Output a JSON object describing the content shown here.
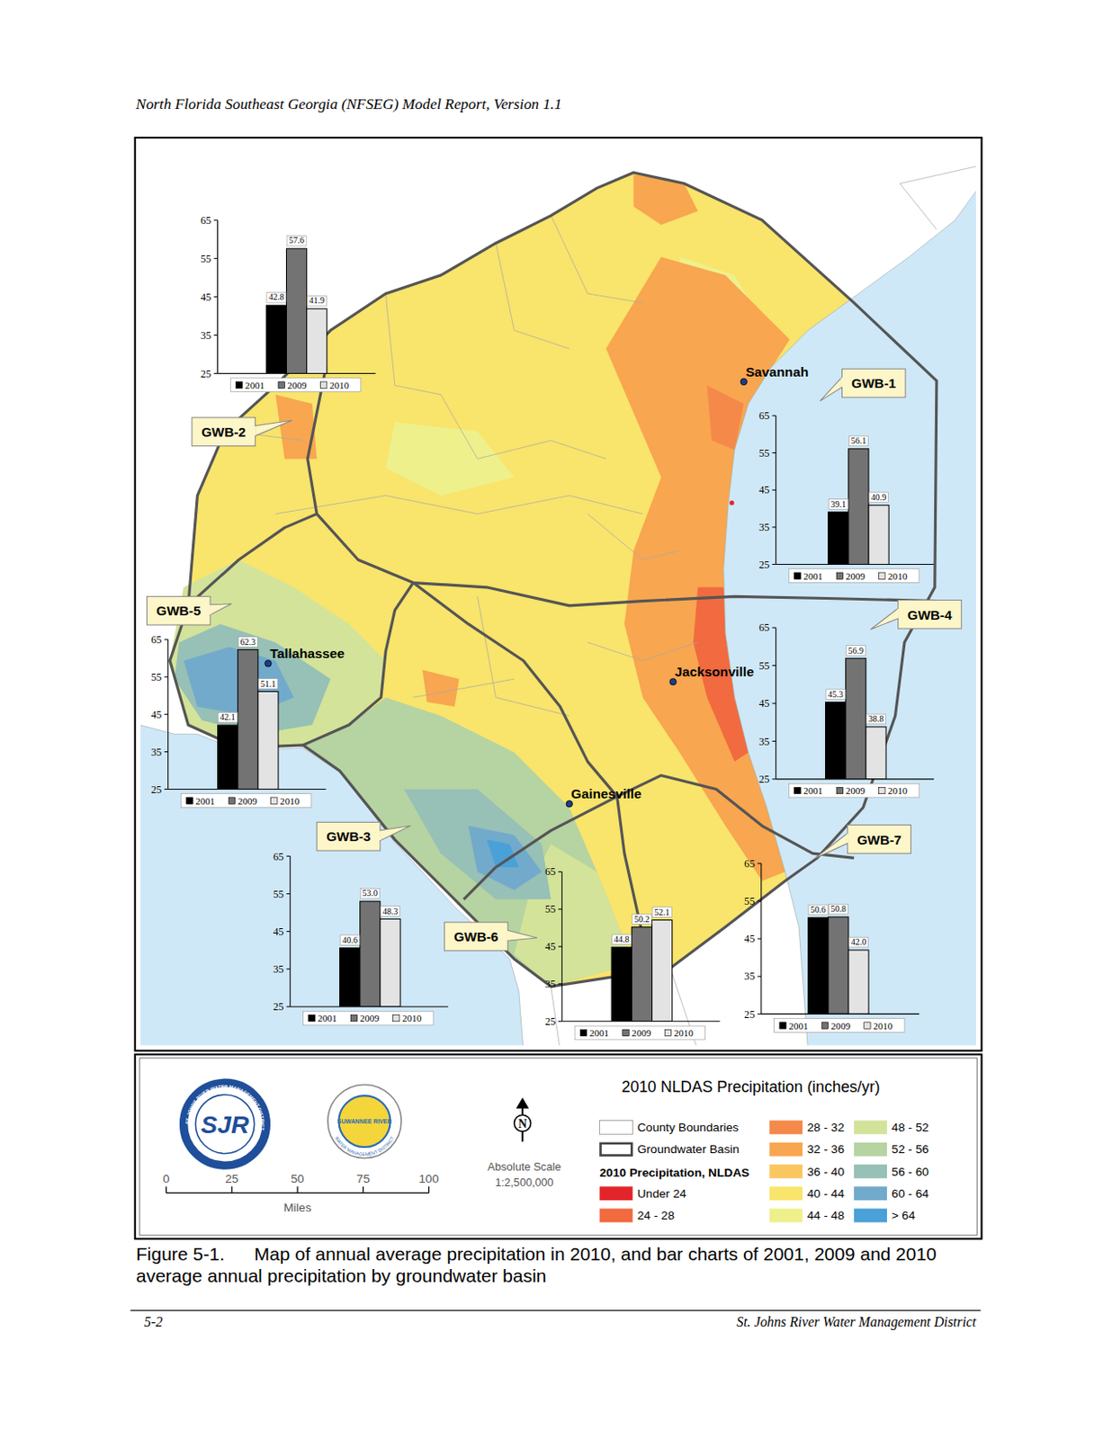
{
  "header": {
    "title": "North Florida Southeast Georgia (NFSEG) Model Report, Version 1.1"
  },
  "map": {
    "cities": [
      {
        "name": "Savannah"
      },
      {
        "name": "Tallahassee"
      },
      {
        "name": "Jacksonville"
      },
      {
        "name": "Gainesville"
      }
    ],
    "key": {
      "title": "2010 NLDAS Precipitation (inches/yr)",
      "county_boundaries": "County Boundaries",
      "groundwater_basin": "Groundwater Basin",
      "classes_title": "2010 Precipitation, NLDAS",
      "classes": [
        {
          "label": "Under 24",
          "color": "#e3242b"
        },
        {
          "label": "24 - 28",
          "color": "#f26a3f"
        },
        {
          "label": "28 - 32",
          "color": "#f5894a"
        },
        {
          "label": "32 - 36",
          "color": "#f8a650"
        },
        {
          "label": "36 - 40",
          "color": "#fbc660"
        },
        {
          "label": "40 - 44",
          "color": "#f9e46c"
        },
        {
          "label": "44 - 48",
          "color": "#eef08c"
        },
        {
          "label": "48 - 52",
          "color": "#d3e39a"
        },
        {
          "label": "52 - 56",
          "color": "#b6d3a2"
        },
        {
          "label": "56 - 60",
          "color": "#97c0b6"
        },
        {
          "label": "60 - 64",
          "color": "#72aacb"
        },
        {
          "label": "> 64",
          "color": "#4aa1d8"
        }
      ]
    },
    "scale_bar": {
      "ticks": [
        0,
        25,
        50,
        75,
        100
      ],
      "unit": "Miles"
    },
    "north_arrow": "N",
    "scale_text": {
      "title": "Absolute Scale",
      "ratio": "1:2,500,000"
    },
    "logos": [
      {
        "abbr": "SJR",
        "text": "ST. JOHNS RIVER WATER MANAGEMENT DISTRICT"
      },
      {
        "abbr": "SUWANNEE RIVER",
        "text": "WATER MANAGEMENT DISTRICT"
      }
    ]
  },
  "chart_data": [
    {
      "type": "bar",
      "title": "GWB-1",
      "categories": [
        "2001",
        "2009",
        "2010"
      ],
      "values": [
        39.1,
        56.1,
        40.9
      ],
      "value_labels": [
        "39.1",
        "56.1",
        "40.9"
      ],
      "colors": [
        "#000000",
        "#737373",
        "#e3e3e3"
      ],
      "ylim": [
        25,
        65
      ],
      "yticks": [
        25,
        35,
        45,
        55,
        65
      ],
      "grid": false,
      "data_labels": true,
      "legend": "bottom"
    },
    {
      "type": "bar",
      "title": "GWB-2",
      "categories": [
        "2001",
        "2009",
        "2010"
      ],
      "values": [
        42.8,
        57.6,
        41.9
      ],
      "value_labels": [
        "42.8",
        "57.6",
        "41.9"
      ],
      "colors": [
        "#000000",
        "#737373",
        "#e3e3e3"
      ],
      "ylim": [
        25,
        65
      ],
      "yticks": [
        25,
        35,
        45,
        55,
        65
      ],
      "grid": false,
      "data_labels": true,
      "legend": "bottom"
    },
    {
      "type": "bar",
      "title": "GWB-3",
      "categories": [
        "2001",
        "2009",
        "2010"
      ],
      "values": [
        40.6,
        53.0,
        48.3
      ],
      "value_labels": [
        "40.6",
        "53.0",
        "48.3"
      ],
      "colors": [
        "#000000",
        "#737373",
        "#e3e3e3"
      ],
      "ylim": [
        25,
        65
      ],
      "yticks": [
        25,
        35,
        45,
        55,
        65
      ],
      "grid": false,
      "data_labels": true,
      "legend": "bottom"
    },
    {
      "type": "bar",
      "title": "GWB-4",
      "categories": [
        "2001",
        "2009",
        "2010"
      ],
      "values": [
        45.3,
        56.9,
        38.8
      ],
      "value_labels": [
        "45.3",
        "56.9",
        "38.8"
      ],
      "colors": [
        "#000000",
        "#737373",
        "#e3e3e3"
      ],
      "ylim": [
        25,
        65
      ],
      "yticks": [
        25,
        35,
        45,
        55,
        65
      ],
      "grid": false,
      "data_labels": true,
      "legend": "bottom"
    },
    {
      "type": "bar",
      "title": "GWB-5",
      "categories": [
        "2001",
        "2009",
        "2010"
      ],
      "values": [
        42.1,
        62.3,
        51.1
      ],
      "value_labels": [
        "42.1",
        "62.3",
        "51.1"
      ],
      "colors": [
        "#000000",
        "#737373",
        "#e3e3e3"
      ],
      "ylim": [
        25,
        65
      ],
      "yticks": [
        25,
        35,
        45,
        55,
        65
      ],
      "grid": false,
      "data_labels": true,
      "legend": "bottom"
    },
    {
      "type": "bar",
      "title": "GWB-6",
      "categories": [
        "2001",
        "2009",
        "2010"
      ],
      "values": [
        44.8,
        50.2,
        52.1
      ],
      "value_labels": [
        "44.8",
        "50.2",
        "52.1"
      ],
      "colors": [
        "#000000",
        "#737373",
        "#e3e3e3"
      ],
      "ylim": [
        25,
        65
      ],
      "yticks": [
        25,
        35,
        45,
        55,
        65
      ],
      "grid": false,
      "data_labels": true,
      "legend": "bottom"
    },
    {
      "type": "bar",
      "title": "GWB-7",
      "categories": [
        "2001",
        "2009",
        "2010"
      ],
      "values": [
        50.6,
        50.8,
        42.0
      ],
      "value_labels": [
        "50.6",
        "50.8",
        "42.0"
      ],
      "colors": [
        "#000000",
        "#737373",
        "#e3e3e3"
      ],
      "ylim": [
        25,
        65
      ],
      "yticks": [
        25,
        35,
        45,
        55,
        65
      ],
      "grid": false,
      "data_labels": true,
      "legend": "bottom"
    }
  ],
  "caption": {
    "label": "Figure 5-1.",
    "text": "Map of annual average precipitation in 2010, and bar charts of 2001, 2009 and 2010 average annual precipitation by groundwater basin"
  },
  "footer": {
    "page": "5-2",
    "publisher": "St. Johns River Water Management District"
  }
}
